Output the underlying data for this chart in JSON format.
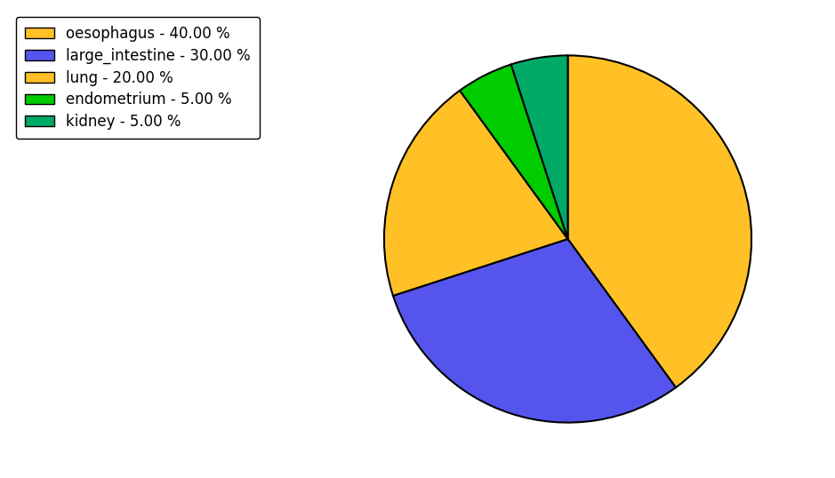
{
  "labels": [
    "oesophagus",
    "large_intestine",
    "lung",
    "endometrium",
    "kidney"
  ],
  "values": [
    40.0,
    30.0,
    20.0,
    5.0,
    5.0
  ],
  "colors": [
    "#FFC125",
    "#5555EE",
    "#FFC125",
    "#00CC00",
    "#00AA66"
  ],
  "legend_labels": [
    "oesophagus - 40.00 %",
    "large_intestine - 30.00 %",
    "lung - 20.00 %",
    "endometrium - 5.00 %",
    "kidney - 5.00 %"
  ],
  "legend_colors": [
    "#FFC125",
    "#5555EE",
    "#FFC125",
    "#00CC00",
    "#00AA66"
  ],
  "startangle": 90,
  "figsize": [
    9.39,
    5.38
  ],
  "dpi": 100,
  "background_color": "#ffffff",
  "edge_color": "#000000",
  "edge_linewidth": 1.5,
  "legend_fontsize": 12
}
